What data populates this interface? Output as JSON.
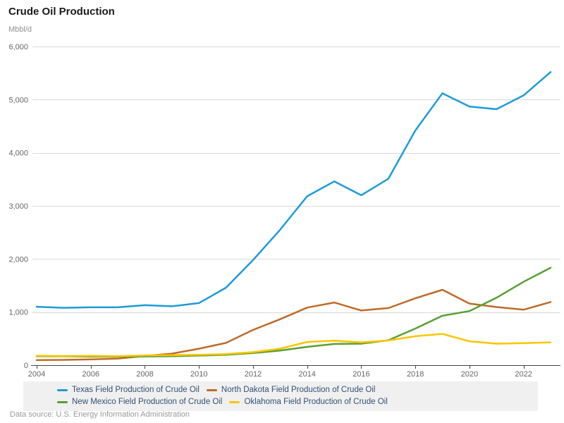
{
  "header": {
    "title": "Crude Oil Production",
    "unit_label": "Mbbl/d"
  },
  "footer": {
    "text": "Data source: U.S. Energy Information Administration"
  },
  "colors": {
    "texas_blue": "#1d9bd8",
    "north_dakota_brown": "#bf6b28",
    "new_mexico_green": "#57a031",
    "oklahoma_yellow": "#fdc500",
    "gridline": "#d9d9d9",
    "axis": "#444444",
    "tick_label": "#666666",
    "legend_text": "#335075",
    "legend_background": "#f0f0f0"
  },
  "chart_data": {
    "type": "line",
    "title": "Crude Oil Production",
    "ylabel": "Mbbl/d",
    "xlabel": "",
    "ylim": [
      0,
      6000
    ],
    "y_ticks": [
      0,
      1000,
      2000,
      3000,
      4000,
      5000,
      6000
    ],
    "y_tick_labels": [
      "0",
      "1,000",
      "2,000",
      "3,000",
      "4,000",
      "5,000",
      "6,000"
    ],
    "x_tick_years": [
      2004,
      2006,
      2008,
      2010,
      2012,
      2014,
      2016,
      2018,
      2020,
      2022
    ],
    "grid": "horizontal",
    "legend_position": "bottom",
    "x": [
      2004,
      2005,
      2006,
      2007,
      2008,
      2009,
      2010,
      2011,
      2012,
      2013,
      2014,
      2015,
      2016,
      2017,
      2018,
      2019,
      2020,
      2021,
      2022,
      2023
    ],
    "series": [
      {
        "name": "Texas Field Production of Crude Oil",
        "color": "#1d9bd8",
        "values": [
          1100,
          1080,
          1090,
          1090,
          1130,
          1110,
          1170,
          1460,
          1980,
          2550,
          3180,
          3460,
          3200,
          3510,
          4420,
          5120,
          4870,
          4820,
          5080,
          5520
        ]
      },
      {
        "name": "North Dakota Field Production of Crude Oil",
        "color": "#bf6b28",
        "values": [
          95,
          100,
          110,
          125,
          172,
          218,
          310,
          420,
          665,
          865,
          1085,
          1180,
          1030,
          1075,
          1260,
          1420,
          1160,
          1095,
          1045,
          1190
        ]
      },
      {
        "name": "New Mexico Field Production of Crude Oil",
        "color": "#57a031",
        "values": [
          170,
          167,
          163,
          161,
          164,
          170,
          180,
          195,
          228,
          275,
          345,
          400,
          405,
          470,
          690,
          930,
          1020,
          1270,
          1570,
          1835
        ]
      },
      {
        "name": "Oklahoma Field Production of Crude Oil",
        "color": "#fdc500",
        "values": [
          178,
          172,
          175,
          170,
          185,
          188,
          195,
          210,
          245,
          310,
          438,
          460,
          430,
          465,
          545,
          590,
          450,
          405,
          415,
          430
        ]
      }
    ]
  }
}
